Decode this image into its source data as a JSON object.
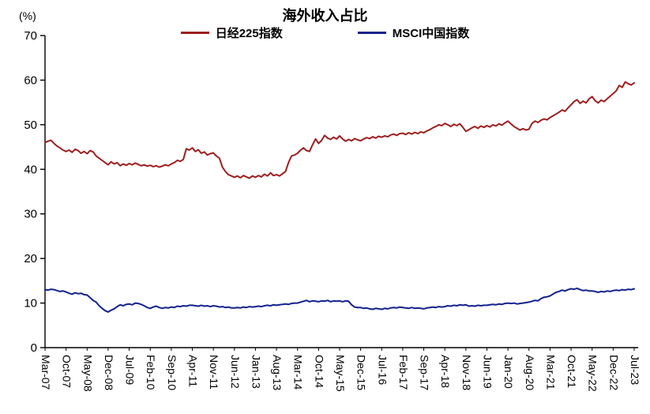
{
  "chart_data": {
    "type": "line",
    "title": "海外收入占比",
    "y_unit_label": "(%)",
    "ylim": [
      0,
      70
    ],
    "y_ticks": [
      0,
      10,
      20,
      30,
      40,
      50,
      60,
      70
    ],
    "grid": false,
    "legend_position": "top",
    "x_tick_interval_months": 7,
    "x_tick_labels": [
      "Mar-07",
      "Oct-07",
      "May-08",
      "Dec-08",
      "Jul-09",
      "Feb-10",
      "Sep-10",
      "Apr-11",
      "Nov-11",
      "Jun-12",
      "Jan-13",
      "Aug-13",
      "Mar-14",
      "Oct-14",
      "May-15",
      "Dec-15",
      "Jul-16",
      "Feb-17",
      "Sep-17",
      "Apr-18",
      "Nov-18",
      "Jun-19",
      "Jan-20",
      "Aug-20",
      "Mar-21",
      "Oct-21",
      "May-22",
      "Dec-22",
      "Jul-23"
    ],
    "series": [
      {
        "name": "日经225指数",
        "color": "#9e1f1f",
        "values": [
          46.0,
          46.3,
          46.5,
          45.8,
          45.2,
          44.8,
          44.3,
          44.0,
          44.3,
          43.8,
          44.5,
          44.2,
          43.6,
          44.0,
          43.5,
          44.2,
          43.9,
          43.0,
          42.5,
          42.0,
          41.5,
          41.0,
          41.7,
          41.2,
          41.5,
          40.8,
          41.2,
          40.9,
          41.3,
          41.0,
          41.4,
          41.1,
          40.8,
          41.0,
          40.7,
          40.9,
          40.6,
          40.8,
          40.5,
          40.7,
          41.0,
          40.8,
          41.2,
          41.5,
          42.0,
          41.8,
          42.2,
          44.6,
          44.3,
          44.8,
          44.0,
          44.4,
          43.6,
          43.9,
          43.2,
          43.5,
          43.7,
          43.0,
          42.5,
          40.5,
          39.5,
          38.8,
          38.5,
          38.2,
          38.5,
          38.1,
          38.6,
          38.3,
          38.0,
          38.5,
          38.2,
          38.6,
          38.3,
          38.9,
          38.5,
          39.2,
          38.6,
          38.8,
          38.5,
          39.0,
          39.5,
          41.5,
          43.0,
          43.2,
          43.6,
          44.3,
          44.8,
          44.2,
          44.0,
          45.5,
          46.8,
          45.8,
          46.5,
          47.6,
          47.0,
          46.7,
          47.2,
          46.8,
          47.5,
          46.8,
          46.3,
          46.7,
          46.4,
          46.9,
          46.6,
          46.4,
          46.8,
          47.1,
          46.9,
          47.3,
          47.0,
          47.4,
          47.2,
          47.5,
          47.3,
          47.7,
          47.9,
          47.6,
          48.0,
          48.1,
          47.8,
          48.2,
          47.9,
          48.3,
          48.0,
          48.4,
          48.2,
          48.6,
          48.9,
          49.3,
          49.6,
          50.0,
          49.8,
          50.3,
          50.0,
          49.6,
          50.1,
          49.8,
          50.2,
          49.4,
          48.5,
          48.9,
          49.3,
          49.6,
          49.2,
          49.7,
          49.4,
          49.8,
          49.5,
          50.0,
          49.7,
          50.2,
          49.9,
          50.4,
          50.8,
          50.2,
          49.6,
          49.2,
          48.8,
          49.1,
          48.8,
          49.0,
          50.3,
          50.8,
          50.5,
          51.0,
          51.3,
          51.1,
          51.6,
          52.0,
          52.4,
          52.8,
          53.3,
          53.0,
          53.8,
          54.5,
          55.2,
          55.6,
          54.8,
          55.3,
          54.9,
          55.8,
          56.3,
          55.4,
          54.9,
          55.5,
          55.2,
          55.8,
          56.4,
          57.0,
          57.6,
          58.8,
          58.4,
          59.6,
          59.2,
          58.9,
          59.4
        ]
      },
      {
        "name": "MSCI中国指数",
        "color": "#14228e",
        "values": [
          13.0,
          12.9,
          13.1,
          13.0,
          12.8,
          12.6,
          12.7,
          12.5,
          12.2,
          12.0,
          12.3,
          12.1,
          12.2,
          11.9,
          11.8,
          11.2,
          10.6,
          10.2,
          9.4,
          8.8,
          8.3,
          8.0,
          8.4,
          8.7,
          9.2,
          9.6,
          9.4,
          9.7,
          9.8,
          9.6,
          10.0,
          9.9,
          9.7,
          9.4,
          9.0,
          8.8,
          9.1,
          9.3,
          9.0,
          8.8,
          9.0,
          8.9,
          9.1,
          9.0,
          9.3,
          9.2,
          9.4,
          9.3,
          9.5,
          9.5,
          9.4,
          9.3,
          9.5,
          9.3,
          9.4,
          9.2,
          9.4,
          9.3,
          9.1,
          9.2,
          9.0,
          9.1,
          8.9,
          8.9,
          9.0,
          8.9,
          9.1,
          9.0,
          9.2,
          9.1,
          9.2,
          9.3,
          9.2,
          9.4,
          9.5,
          9.4,
          9.6,
          9.5,
          9.6,
          9.7,
          9.8,
          9.7,
          9.9,
          10.0,
          10.0,
          10.2,
          10.4,
          10.6,
          10.3,
          10.5,
          10.4,
          10.3,
          10.5,
          10.4,
          10.6,
          10.3,
          10.5,
          10.4,
          10.5,
          10.3,
          10.5,
          10.4,
          9.6,
          9.1,
          9.0,
          9.0,
          8.8,
          8.9,
          8.7,
          8.6,
          8.8,
          8.7,
          8.6,
          8.8,
          8.7,
          8.9,
          9.0,
          8.9,
          9.1,
          9.0,
          8.9,
          8.8,
          9.0,
          8.8,
          8.9,
          8.8,
          8.7,
          8.9,
          9.0,
          9.1,
          9.0,
          9.2,
          9.1,
          9.2,
          9.4,
          9.3,
          9.5,
          9.4,
          9.6,
          9.5,
          9.6,
          9.3,
          9.4,
          9.3,
          9.5,
          9.4,
          9.5,
          9.5,
          9.6,
          9.7,
          9.6,
          9.8,
          9.7,
          9.9,
          10.0,
          9.9,
          10.0,
          9.8,
          9.9,
          10.0,
          10.1,
          10.2,
          10.4,
          10.6,
          10.5,
          11.0,
          11.3,
          11.4,
          11.6,
          12.0,
          12.4,
          12.6,
          12.9,
          12.7,
          13.0,
          13.2,
          13.1,
          13.3,
          13.0,
          12.8,
          12.9,
          12.7,
          12.7,
          12.6,
          12.4,
          12.6,
          12.5,
          12.7,
          12.6,
          12.8,
          12.9,
          12.8,
          13.0,
          12.9,
          13.1,
          13.0,
          13.2
        ]
      }
    ]
  }
}
